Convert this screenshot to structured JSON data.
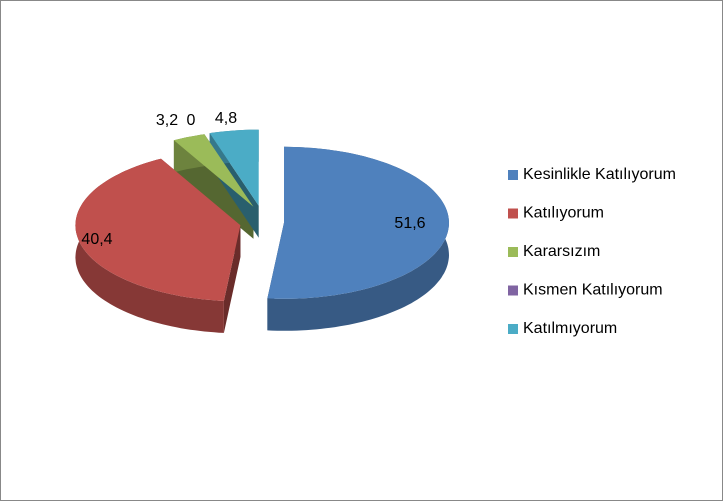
{
  "chart_data": {
    "type": "pie3d",
    "categories": [
      "Kesinlikle Katılıyorum",
      "Katılıyorum",
      "Kararsızım",
      "Kısmen Katılıyorum",
      "Katılmıyorum"
    ],
    "values": [
      51.6,
      40.4,
      3.2,
      0,
      4.8
    ],
    "value_labels": [
      "51,6",
      "40,4",
      "3,2",
      "0",
      "4,8"
    ],
    "colors": [
      "#4f81bd",
      "#c0504d",
      "#9bbb59",
      "#8064a2",
      "#4bacc6"
    ],
    "legend": "right"
  }
}
